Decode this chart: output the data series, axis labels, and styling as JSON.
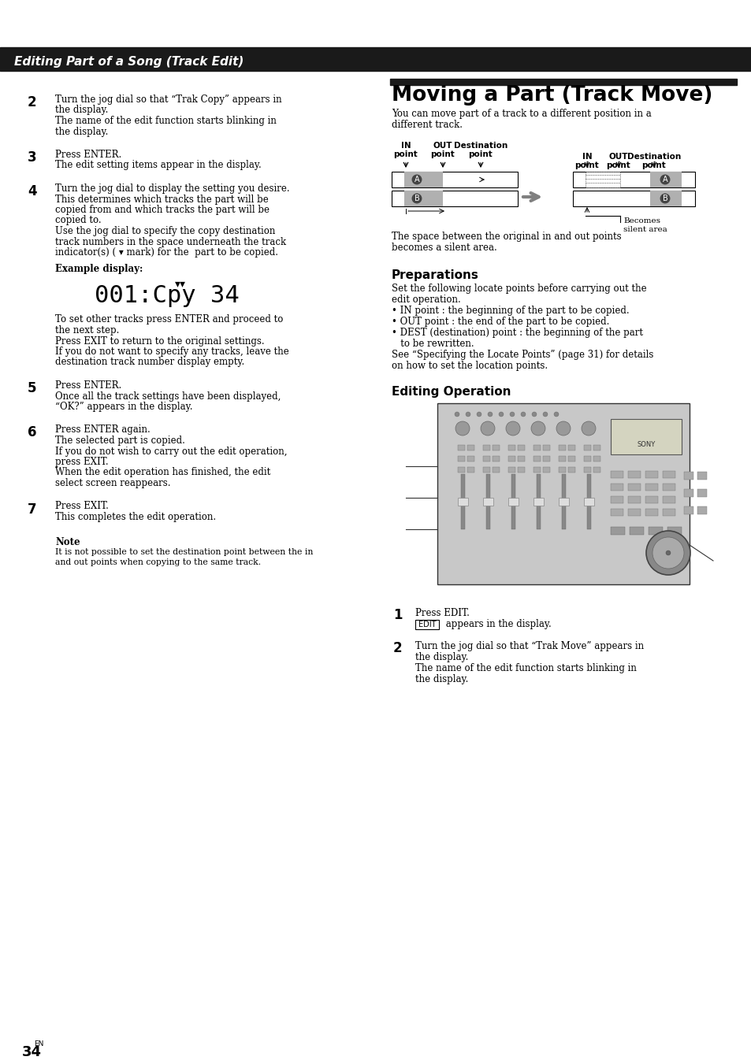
{
  "header_text": "Editing Part of a Song (Track Edit)",
  "header_bg": "#1a1a1a",
  "header_color": "#ffffff",
  "page_bg": "#ffffff",
  "page_number": "34",
  "page_number_suffix": "EN"
}
